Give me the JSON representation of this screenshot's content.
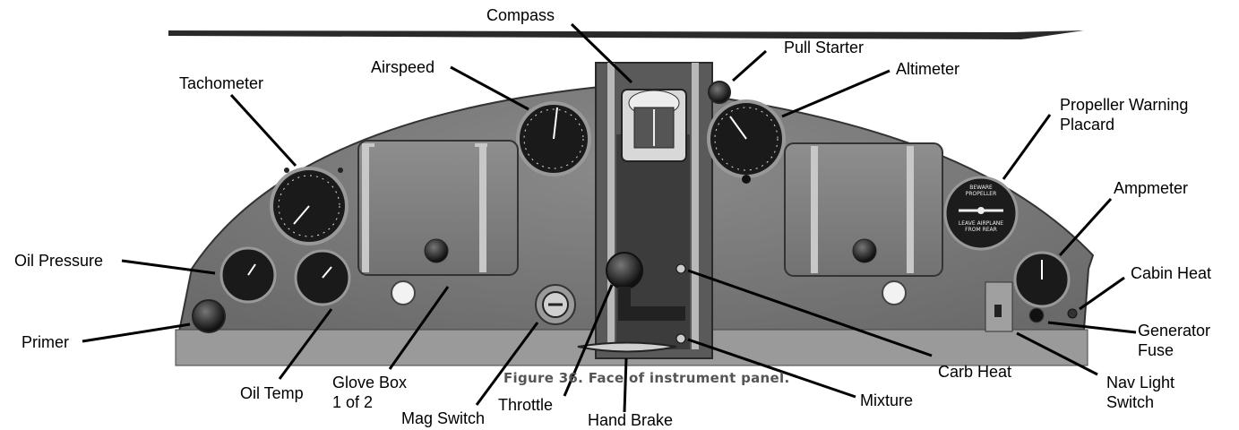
{
  "caption": "Figure 36. Face of instrument panel.",
  "placard": {
    "line1": "BEWARE",
    "line2": "PROPELLER",
    "line3": "LEAVE AIRPLANE",
    "line4": "FROM REAR"
  },
  "labels": {
    "compass": "Compass",
    "pull_starter": "Pull Starter",
    "airspeed": "Airspeed",
    "altimeter": "Altimeter",
    "tachometer": "Tachometer",
    "propeller_warning_1": "Propeller Warning",
    "propeller_warning_2": "Placard",
    "ampmeter": "Ampmeter",
    "oil_pressure": "Oil Pressure",
    "cabin_heat": "Cabin Heat",
    "primer": "Primer",
    "generator_fuse_1": "Generator",
    "generator_fuse_2": "Fuse",
    "oil_temp": "Oil Temp",
    "glove_box_1": "Glove Box",
    "glove_box_2": "1 of 2",
    "carb_heat": "Carb Heat",
    "nav_light_1": "Nav Light",
    "nav_light_2": "Switch",
    "mag_switch": "Mag Switch",
    "throttle": "Throttle",
    "mixture": "Mixture",
    "hand_brake": "Hand Brake"
  }
}
